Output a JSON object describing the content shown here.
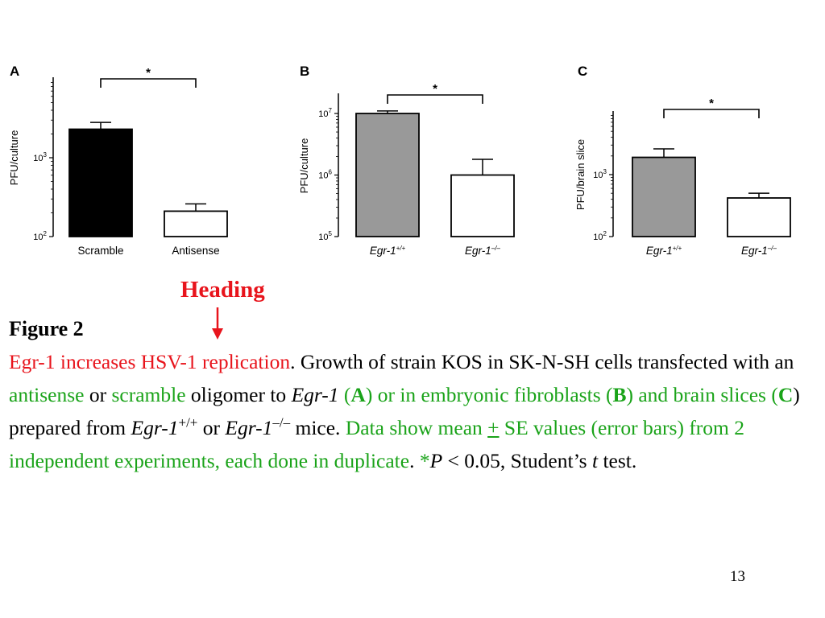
{
  "slide": {
    "heading_annotation": "Heading",
    "page_number": "13",
    "caption": {
      "figure_label": "Figure 2",
      "title": "Egr-1 increases HSV-1 replication",
      "t1": ". Growth of strain KOS in SK-N-SH cells transfected with an ",
      "antisense": "antisense",
      "or1": " or ",
      "scramble": "scramble",
      "t2": " oligomer to ",
      "egr_italic": "Egr-1",
      "paren_open": " (",
      "panel_a": "A",
      "t3": ") or in embryonic fibroblasts (",
      "panel_b": "B",
      "t4": ") and brain slices (",
      "panel_c": "C",
      "t5": ") prepared from ",
      "egr_wt": "Egr-1",
      "sup_wt": "+/+",
      "or2": " or ",
      "egr_ko": "Egr-1",
      "sup_ko": "–/–",
      "t6": " mice. ",
      "data_show": "Data show mean ",
      "plus": "+",
      "se_text": " SE values (error bars) from 2 independent experiments, each done in duplicate",
      "t7": ". ",
      "star_p": "*",
      "p": "P",
      "t8": " < 0.05, Student’s ",
      "t_italic": "t",
      "t9": " test."
    }
  },
  "colors": {
    "accent_red": "#e8141c",
    "accent_green": "#1aa319",
    "bar_black": "#000000",
    "bar_gray": "#999999",
    "bar_white": "#ffffff"
  },
  "chart_data": [
    {
      "panel": "A",
      "type": "bar",
      "yscale": "log",
      "ylim": [
        100,
        10000
      ],
      "ylabel": "PFU/culture",
      "yticks": [
        {
          "value": 100,
          "label": "10 2"
        },
        {
          "value": 1000,
          "label": "10 3"
        }
      ],
      "categories": [
        "Scramble",
        "Antisense"
      ],
      "values": [
        2300,
        210
      ],
      "errors": [
        2800,
        260
      ],
      "colors": [
        "#000000",
        "#ffffff"
      ],
      "significance": "*"
    },
    {
      "panel": "B",
      "type": "bar",
      "yscale": "log",
      "ylim": [
        100000,
        20000000
      ],
      "ylabel": "PFU/culture",
      "yticks": [
        {
          "value": 100000,
          "label": "10 5"
        },
        {
          "value": 1000000,
          "label": "10 6"
        },
        {
          "value": 10000000,
          "label": "10 7"
        }
      ],
      "categories": [
        "Egr-1+/+",
        "Egr-1–/–"
      ],
      "values": [
        10000000,
        1000000
      ],
      "errors": [
        11000000,
        1800000
      ],
      "colors": [
        "#999999",
        "#ffffff"
      ],
      "significance": "*"
    },
    {
      "panel": "C",
      "type": "bar",
      "yscale": "log",
      "ylim": [
        100,
        10000
      ],
      "ylabel": "PFU/brain slice",
      "yticks": [
        {
          "value": 100,
          "label": "10 2"
        },
        {
          "value": 1000,
          "label": "10 3"
        }
      ],
      "categories": [
        "Egr-1+/+",
        "Egr-1–/–"
      ],
      "values": [
        1900,
        420
      ],
      "errors": [
        2600,
        500
      ],
      "colors": [
        "#999999",
        "#ffffff"
      ],
      "significance": "*"
    }
  ]
}
